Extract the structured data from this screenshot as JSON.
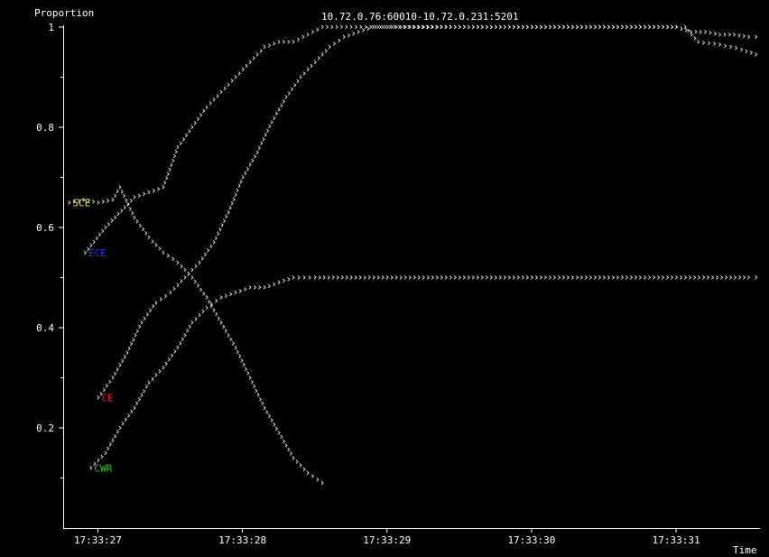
{
  "chart_data": {
    "type": "scatter",
    "title": "10.72.0.76:60010-10.72.0.231:5201",
    "xlabel": "Time",
    "ylabel": "Proportion",
    "x_ticks": [
      "17:33:27",
      "17:33:28",
      "17:33:29",
      "17:33:30",
      "17:33:31"
    ],
    "x_tick_values": [
      27,
      28,
      29,
      30,
      31
    ],
    "xlim": [
      26.76,
      31.58
    ],
    "y_ticks": [
      "0.2",
      "0.4",
      "0.6",
      "0.8",
      "1"
    ],
    "y_tick_values": [
      0.2,
      0.4,
      0.6,
      0.8,
      1.0
    ],
    "ylim": [
      0.0,
      1.0
    ],
    "grid": false,
    "legend": "inline labels at series start",
    "series": [
      {
        "name": "ECE",
        "color": "#3333ff",
        "marker": "chevron",
        "x": [
          26.91,
          27.05,
          27.25,
          27.45,
          27.55,
          27.65,
          27.75,
          27.85,
          27.95,
          28.05,
          28.15,
          28.25,
          28.35,
          28.45,
          28.55,
          28.65,
          28.75,
          28.85,
          28.95,
          29.05,
          29.5,
          30.0,
          30.5,
          31.0,
          31.06,
          31.15,
          31.3,
          31.45,
          31.55
        ],
        "y": [
          0.55,
          0.6,
          0.66,
          0.68,
          0.76,
          0.8,
          0.84,
          0.87,
          0.9,
          0.93,
          0.96,
          0.97,
          0.97,
          0.985,
          1.0,
          1.0,
          1.0,
          1.0,
          1.0,
          1.0,
          1.0,
          1.0,
          1.0,
          1.0,
          1.0,
          0.97,
          0.965,
          0.955,
          0.945
        ]
      },
      {
        "name": "CE",
        "color": "#ee2222",
        "marker": "chevron",
        "x": [
          27.0,
          27.1,
          27.2,
          27.3,
          27.4,
          27.5,
          27.6,
          27.7,
          27.8,
          27.9,
          28.0,
          28.1,
          28.2,
          28.3,
          28.4,
          28.5,
          28.6,
          28.7,
          28.8,
          28.9,
          29.0,
          29.5,
          30.0,
          30.5,
          31.0,
          31.1,
          31.2,
          31.3,
          31.4,
          31.5,
          31.55
        ],
        "y": [
          0.26,
          0.3,
          0.35,
          0.41,
          0.45,
          0.47,
          0.5,
          0.53,
          0.57,
          0.63,
          0.7,
          0.75,
          0.81,
          0.86,
          0.9,
          0.93,
          0.96,
          0.98,
          0.99,
          1.0,
          1.0,
          1.0,
          1.0,
          1.0,
          1.0,
          0.99,
          0.99,
          0.985,
          0.985,
          0.98,
          0.98
        ]
      },
      {
        "name": "CWR",
        "color": "#33cc33",
        "marker": "chevron",
        "x": [
          26.95,
          27.05,
          27.15,
          27.25,
          27.35,
          27.45,
          27.55,
          27.65,
          27.75,
          27.85,
          27.95,
          28.05,
          28.15,
          28.25,
          28.35,
          28.5,
          29.0,
          29.5,
          30.0,
          30.5,
          31.0,
          31.5,
          31.55
        ],
        "y": [
          0.12,
          0.15,
          0.2,
          0.24,
          0.29,
          0.32,
          0.36,
          0.41,
          0.44,
          0.46,
          0.47,
          0.48,
          0.48,
          0.49,
          0.5,
          0.5,
          0.5,
          0.5,
          0.5,
          0.5,
          0.5,
          0.5,
          0.5
        ]
      },
      {
        "name": "SCE",
        "color": "#eeee33",
        "marker": "chevron",
        "x": [
          26.8,
          26.9,
          27.0,
          27.1,
          27.15,
          27.25,
          27.35,
          27.45,
          27.55,
          27.65,
          27.75,
          27.85,
          27.95,
          28.05,
          28.15,
          28.25,
          28.35,
          28.45,
          28.55
        ],
        "y": [
          0.65,
          0.655,
          0.65,
          0.655,
          0.68,
          0.62,
          0.58,
          0.55,
          0.53,
          0.5,
          0.46,
          0.41,
          0.36,
          0.3,
          0.24,
          0.19,
          0.14,
          0.11,
          0.09
        ]
      }
    ]
  }
}
